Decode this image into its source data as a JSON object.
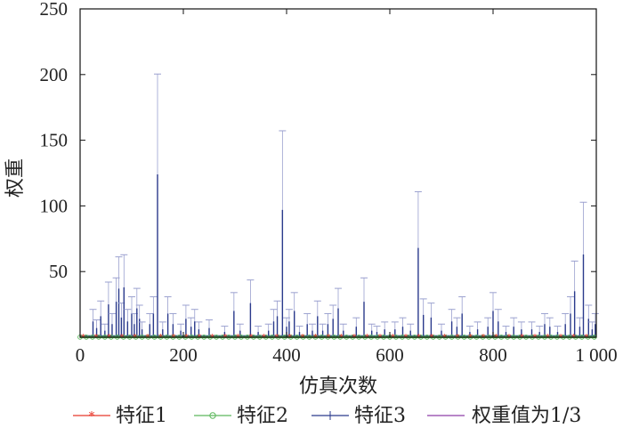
{
  "chart_data": {
    "type": "line",
    "xlabel": "仿真次数",
    "ylabel": "权重",
    "xlim": [
      0,
      1000
    ],
    "ylim": [
      0,
      250
    ],
    "x_ticks": [
      0,
      200,
      400,
      600,
      800,
      1000
    ],
    "x_tick_labels": [
      "0",
      "200",
      "400",
      "600",
      "800",
      "1 000"
    ],
    "y_ticks": [
      50,
      100,
      150,
      200,
      250
    ],
    "y_tick_labels": [
      "50",
      "100",
      "150",
      "200",
      "250"
    ],
    "grid": false,
    "legend_position": "bottom",
    "series": [
      {
        "name": "特征1",
        "color": "#e8372a",
        "marker": "star",
        "baseline": 0.3
      },
      {
        "name": "特征2",
        "color": "#5cb85c",
        "marker": "circle",
        "baseline": 0.1
      },
      {
        "name": "特征3",
        "color": "#2a3a8c",
        "marker": "plus",
        "baseline": 0.5,
        "spikes": [
          [
            25,
            12
          ],
          [
            32,
            7
          ],
          [
            40,
            16
          ],
          [
            48,
            5
          ],
          [
            55,
            25
          ],
          [
            62,
            10
          ],
          [
            70,
            27
          ],
          [
            75,
            37
          ],
          [
            80,
            15
          ],
          [
            85,
            38
          ],
          [
            92,
            12
          ],
          [
            100,
            18
          ],
          [
            105,
            10
          ],
          [
            110,
            22
          ],
          [
            115,
            14
          ],
          [
            120,
            6
          ],
          [
            135,
            10
          ],
          [
            142,
            18
          ],
          [
            150,
            124
          ],
          [
            160,
            6
          ],
          [
            170,
            18
          ],
          [
            180,
            10
          ],
          [
            195,
            5
          ],
          [
            205,
            14
          ],
          [
            215,
            8
          ],
          [
            222,
            12
          ],
          [
            230,
            6
          ],
          [
            250,
            7
          ],
          [
            280,
            4
          ],
          [
            298,
            20
          ],
          [
            310,
            5
          ],
          [
            330,
            26
          ],
          [
            345,
            4
          ],
          [
            365,
            5
          ],
          [
            375,
            12
          ],
          [
            382,
            16
          ],
          [
            392,
            97
          ],
          [
            400,
            8
          ],
          [
            405,
            12
          ],
          [
            415,
            20
          ],
          [
            425,
            4
          ],
          [
            440,
            10
          ],
          [
            450,
            5
          ],
          [
            460,
            16
          ],
          [
            470,
            5
          ],
          [
            480,
            10
          ],
          [
            490,
            14
          ],
          [
            500,
            22
          ],
          [
            510,
            5
          ],
          [
            535,
            8
          ],
          [
            550,
            27
          ],
          [
            565,
            5
          ],
          [
            575,
            4
          ],
          [
            590,
            6
          ],
          [
            610,
            6
          ],
          [
            625,
            8
          ],
          [
            640,
            5
          ],
          [
            655,
            68
          ],
          [
            665,
            17
          ],
          [
            680,
            15
          ],
          [
            700,
            5
          ],
          [
            720,
            12
          ],
          [
            730,
            8
          ],
          [
            740,
            18
          ],
          [
            755,
            4
          ],
          [
            770,
            6
          ],
          [
            790,
            8
          ],
          [
            800,
            20
          ],
          [
            810,
            12
          ],
          [
            825,
            4
          ],
          [
            840,
            8
          ],
          [
            855,
            6
          ],
          [
            875,
            6
          ],
          [
            890,
            4
          ],
          [
            900,
            10
          ],
          [
            910,
            8
          ],
          [
            925,
            4
          ],
          [
            940,
            10
          ],
          [
            950,
            18
          ],
          [
            958,
            35
          ],
          [
            968,
            8
          ],
          [
            975,
            63
          ],
          [
            985,
            14
          ],
          [
            992,
            6
          ],
          [
            998,
            10
          ]
        ]
      },
      {
        "name": "权重值为1/3",
        "color": "#8e3fa8",
        "marker": "none",
        "value": 0.333
      }
    ]
  }
}
